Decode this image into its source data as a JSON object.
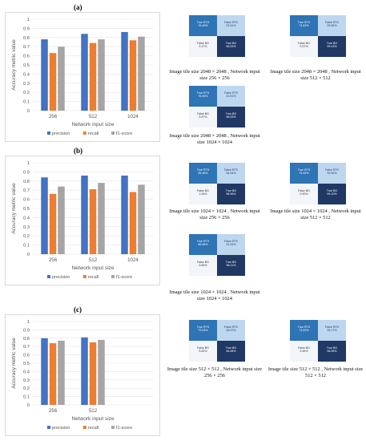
{
  "colors": {
    "precision": "#4472c4",
    "recall": "#ed7d31",
    "f1": "#a5a5a5",
    "tp": "#2f74b5",
    "fp": "#bdd7ee",
    "fn": "#f2f5fa",
    "tn": "#1f3864"
  },
  "cm_labels": {
    "tp": "True RTS",
    "fp": "False RTS",
    "fn": "False BG",
    "tn": "True BG"
  },
  "chart_data": [
    {
      "type": "bar",
      "panel": "(a)",
      "categories": [
        "256",
        "512",
        "1024"
      ],
      "series": [
        {
          "name": "precision",
          "values": [
            0.78,
            0.84,
            0.86
          ]
        },
        {
          "name": "recall",
          "values": [
            0.63,
            0.74,
            0.77
          ]
        },
        {
          "name": "f1-score",
          "values": [
            0.7,
            0.78,
            0.81
          ]
        }
      ],
      "xlabel": "Network input size",
      "ylabel": "Accuracy metric value",
      "ylim": [
        0,
        1
      ],
      "yticks": [
        "0",
        "0.1",
        "0.2",
        "0.3",
        "0.4",
        "0.5",
        "0.6",
        "0.7",
        "0.8",
        "0.9",
        "1"
      ],
      "grid": true,
      "legend": "bottom"
    },
    {
      "type": "bar",
      "panel": "(b)",
      "categories": [
        "256",
        "512",
        "1024"
      ],
      "series": [
        {
          "name": "precision",
          "values": [
            0.84,
            0.86,
            0.86
          ]
        },
        {
          "name": "recall",
          "values": [
            0.66,
            0.71,
            0.68
          ]
        },
        {
          "name": "f1-score",
          "values": [
            0.74,
            0.78,
            0.76
          ]
        }
      ],
      "xlabel": "Network input size",
      "ylabel": "Accuracy metric value",
      "ylim": [
        0,
        1
      ],
      "yticks": [
        "0",
        "0.1",
        "0.2",
        "0.3",
        "0.4",
        "0.5",
        "0.6",
        "0.7",
        "0.8",
        "0.9",
        "1"
      ],
      "grid": true,
      "legend": "bottom"
    },
    {
      "type": "bar",
      "panel": "(c)",
      "categories": [
        "256",
        "512"
      ],
      "series": [
        {
          "name": "precision",
          "values": [
            0.8,
            0.81
          ]
        },
        {
          "name": "recall",
          "values": [
            0.74,
            0.75
          ]
        },
        {
          "name": "f1-score",
          "values": [
            0.77,
            0.78
          ]
        }
      ],
      "xlabel": "Network input size",
      "ylabel": "Accuracy metric value",
      "ylim": [
        0,
        1
      ],
      "yticks": [
        "0",
        "0.1",
        "0.2",
        "0.3",
        "0.4",
        "0.5",
        "0.6",
        "0.7",
        "0.8",
        "0.9",
        "1"
      ],
      "grid": true,
      "legend": "bottom"
    }
  ],
  "matrices": [
    {
      "tp": "76.45%",
      "fp": "23.51%",
      "fn": "3.47%",
      "tn": "96.53%",
      "caption": "Image tile size 2048 × 2048 , Network input size 256 × 256"
    },
    {
      "tp": "74.62%",
      "fp": "25.56%",
      "fn": "0.57%",
      "tn": "99.43%",
      "caption": "Image tile size 2048 × 2048 , Network input size 512 × 512"
    },
    {
      "tp": "76.49%",
      "fp": "23.51%",
      "fn": "3.47%",
      "tn": "96.53%",
      "caption": "Image tile size 2048 × 2048 , Network input size 1024 × 1024"
    },
    {
      "tp": "65.46%",
      "fp": "34.54%",
      "fn": "1.04%",
      "tn": "98.96%",
      "caption": "Image tile size 1024 × 1024 , Network input size 256 × 256"
    },
    {
      "tp": "74.45%",
      "fp": "25.60%",
      "fn": "0.90%",
      "tn": "99.10%",
      "caption": "Image tile size 1024 × 1024 , Network input size 512 × 512"
    },
    {
      "tp": "68.06%",
      "fp": "31.94%",
      "fn": "3.89%",
      "tn": "96.11%",
      "caption": "Image tile size 1024 × 1024 , Network input size 1024 × 1024"
    },
    {
      "tp": "73.03%",
      "fp": "26.07%",
      "fn": "3.52%",
      "tn": "96.48%",
      "caption": "Image tile size 512 × 512 , Network input size 256 × 256"
    },
    {
      "tp": "74.83%",
      "fp": "25.17%",
      "fn": "3.45%",
      "tn": "96.55%",
      "caption": "Image tile size 512 × 512 , Network input size 512 × 512"
    }
  ]
}
